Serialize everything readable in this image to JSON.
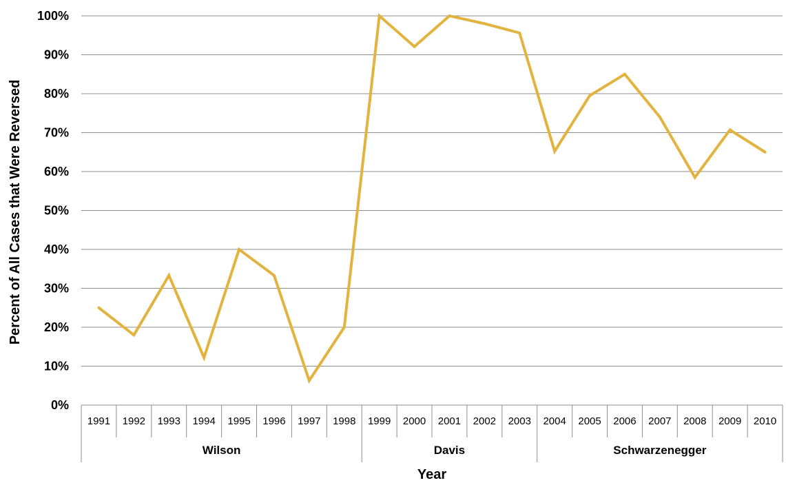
{
  "chart_data": {
    "type": "line",
    "title": "",
    "xlabel": "Year",
    "ylabel": "Percent of All Cases that Were Reversed",
    "ylim": [
      0,
      100
    ],
    "yticks": [
      0,
      10,
      20,
      30,
      40,
      50,
      60,
      70,
      80,
      90,
      100
    ],
    "ytick_suffix": "%",
    "grid": true,
    "legend": "none",
    "line_color": "#E2B33E",
    "categories": [
      "1991",
      "1992",
      "1993",
      "1994",
      "1995",
      "1996",
      "1997",
      "1998",
      "1999",
      "2000",
      "2001",
      "2002",
      "2003",
      "2004",
      "2005",
      "2006",
      "2007",
      "2008",
      "2009",
      "2010"
    ],
    "groups": [
      {
        "label": "Wilson",
        "start": 0,
        "end": 7
      },
      {
        "label": "Davis",
        "start": 8,
        "end": 12
      },
      {
        "label": "Schwarzenegger",
        "start": 13,
        "end": 19
      }
    ],
    "series": [
      {
        "values": [
          25,
          18,
          33.3,
          12.2,
          40,
          33.3,
          6.3,
          20,
          100,
          92.1,
          100,
          98,
          95.6,
          65.2,
          79.5,
          85,
          74,
          58.5,
          70.7,
          65
        ]
      }
    ]
  }
}
